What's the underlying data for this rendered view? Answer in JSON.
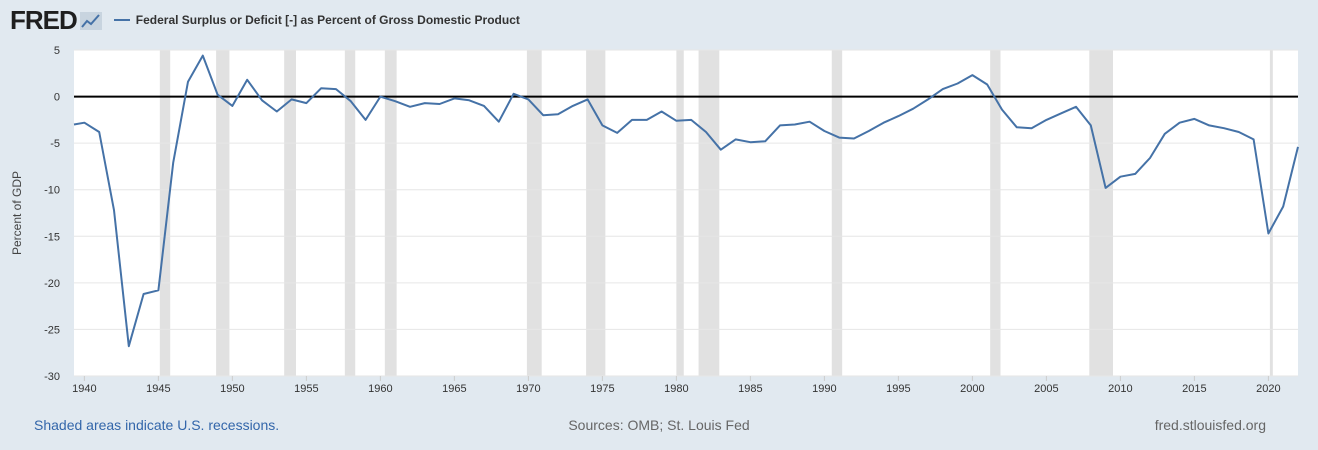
{
  "brand": {
    "logo_text": "FRED"
  },
  "colors": {
    "series": "#4572a7",
    "recession": "#e1e1e1",
    "background": "#e1e9f0",
    "plot": "#ffffff",
    "zero_line": "#000000"
  },
  "chart_data": {
    "type": "line",
    "title": "",
    "xlabel": "",
    "ylabel": "Percent of GDP",
    "xlim": [
      1939.3,
      2022
    ],
    "ylim": [
      -30,
      5
    ],
    "x_ticks": [
      1940,
      1945,
      1950,
      1955,
      1960,
      1965,
      1970,
      1975,
      1980,
      1985,
      1990,
      1995,
      2000,
      2005,
      2010,
      2015,
      2020
    ],
    "y_ticks": [
      5,
      0,
      -5,
      -10,
      -15,
      -20,
      -25,
      -30
    ],
    "grid": true,
    "legend_position": "top-left",
    "reference_line": 0,
    "recessions": [
      [
        1945.1,
        1945.8
      ],
      [
        1948.9,
        1949.8
      ],
      [
        1953.5,
        1954.3
      ],
      [
        1957.6,
        1958.3
      ],
      [
        1960.3,
        1961.1
      ],
      [
        1969.9,
        1970.9
      ],
      [
        1973.9,
        1975.2
      ],
      [
        1980.0,
        1980.5
      ],
      [
        1981.5,
        1982.9
      ],
      [
        1990.5,
        1991.2
      ],
      [
        2001.2,
        2001.9
      ],
      [
        2007.9,
        2009.5
      ],
      [
        2020.1,
        2020.3
      ]
    ],
    "series": [
      {
        "name": "Federal Surplus or Deficit [-] as Percent of Gross Domestic Product",
        "x": [
          1939.3,
          1940,
          1941,
          1942,
          1943,
          1944,
          1945,
          1946,
          1947,
          1948,
          1949,
          1950,
          1951,
          1952,
          1953,
          1954,
          1955,
          1956,
          1957,
          1958,
          1959,
          1960,
          1961,
          1962,
          1963,
          1964,
          1965,
          1966,
          1967,
          1968,
          1969,
          1970,
          1971,
          1972,
          1973,
          1974,
          1975,
          1976,
          1977,
          1978,
          1979,
          1980,
          1981,
          1982,
          1983,
          1984,
          1985,
          1986,
          1987,
          1988,
          1989,
          1990,
          1991,
          1992,
          1993,
          1994,
          1995,
          1996,
          1997,
          1998,
          1999,
          2000,
          2001,
          2002,
          2003,
          2004,
          2005,
          2006,
          2007,
          2008,
          2009,
          2010,
          2011,
          2012,
          2013,
          2014,
          2015,
          2016,
          2017,
          2018,
          2019,
          2020,
          2021,
          2022
        ],
        "values": [
          -3.0,
          -2.8,
          -3.8,
          -12.2,
          -26.8,
          -21.2,
          -20.8,
          -7.1,
          1.6,
          4.4,
          0.2,
          -1.0,
          1.8,
          -0.4,
          -1.6,
          -0.3,
          -0.7,
          0.9,
          0.8,
          -0.5,
          -2.5,
          0.0,
          -0.5,
          -1.1,
          -0.7,
          -0.8,
          -0.2,
          -0.4,
          -1.0,
          -2.7,
          0.3,
          -0.3,
          -2.0,
          -1.9,
          -1.0,
          -0.3,
          -3.1,
          -3.9,
          -2.5,
          -2.5,
          -1.6,
          -2.6,
          -2.5,
          -3.8,
          -5.7,
          -4.6,
          -4.9,
          -4.8,
          -3.1,
          -3.0,
          -2.7,
          -3.7,
          -4.4,
          -4.5,
          -3.7,
          -2.8,
          -2.1,
          -1.3,
          -0.3,
          0.8,
          1.4,
          2.3,
          1.3,
          -1.4,
          -3.3,
          -3.4,
          -2.5,
          -1.8,
          -1.1,
          -3.1,
          -9.8,
          -8.6,
          -8.3,
          -6.6,
          -4.0,
          -2.8,
          -2.4,
          -3.1,
          -3.4,
          -3.8,
          -4.6,
          -14.7,
          -11.8,
          -5.4
        ]
      }
    ]
  },
  "footer": {
    "left": "Shaded areas indicate U.S. recessions.",
    "center": "Sources: OMB; St. Louis Fed",
    "right": "fred.stlouisfed.org"
  }
}
